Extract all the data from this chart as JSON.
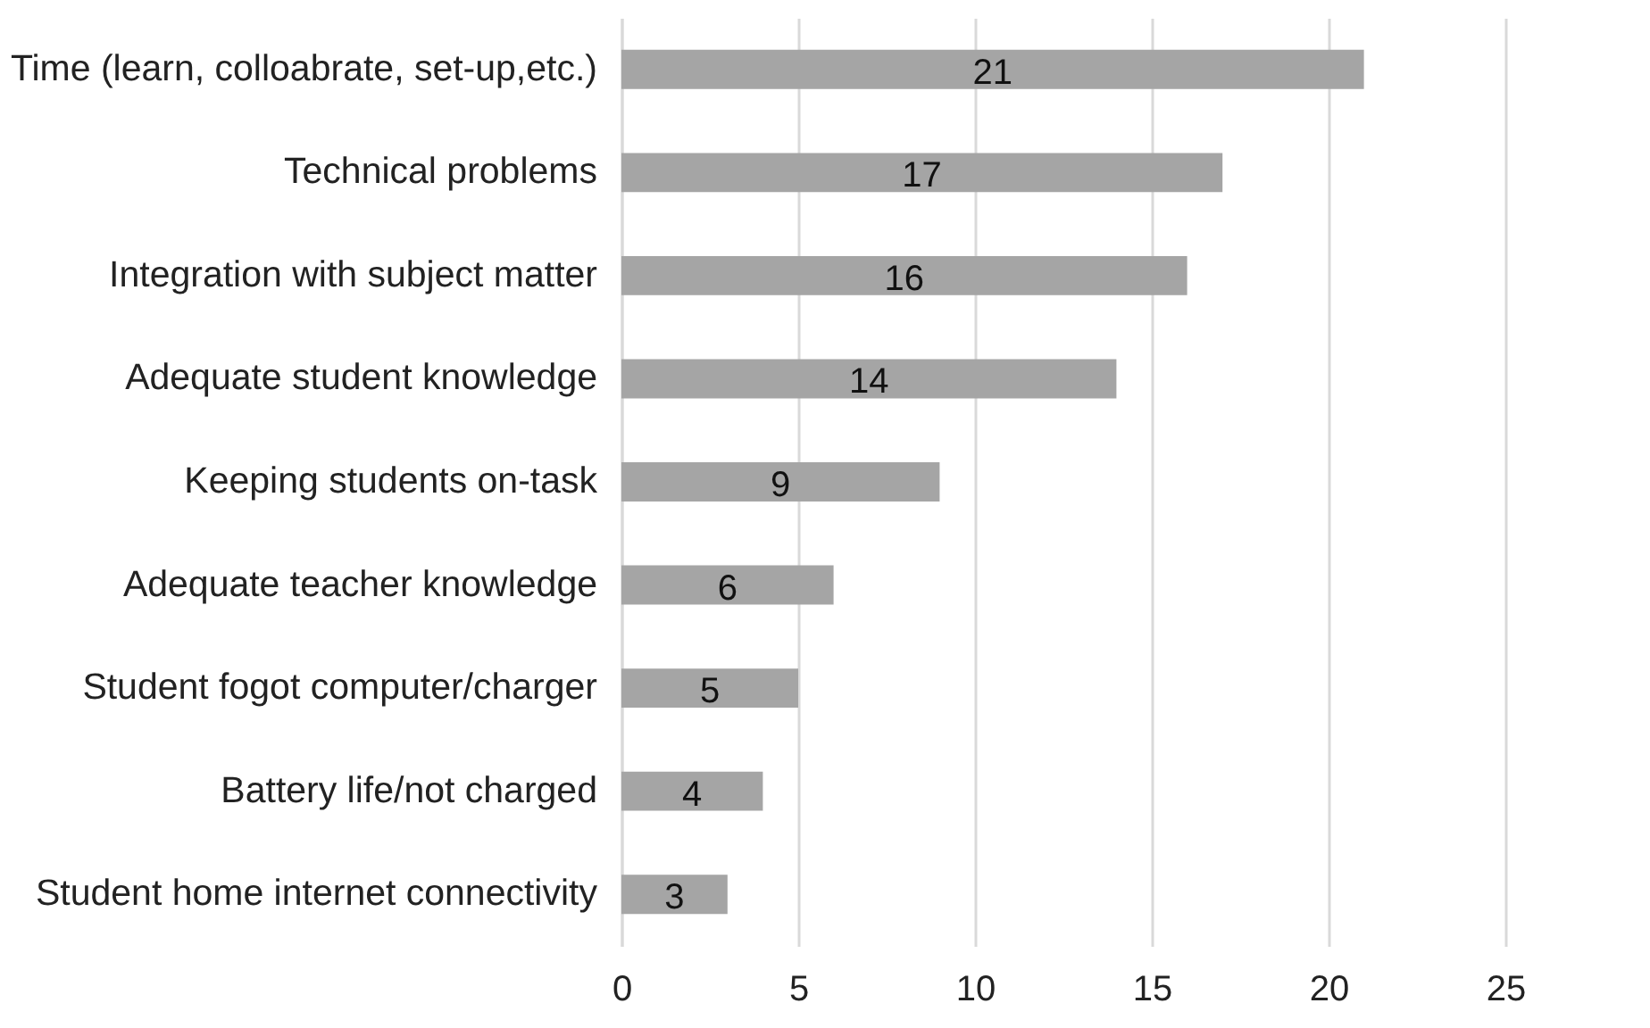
{
  "chart_data": {
    "type": "bar",
    "orientation": "horizontal",
    "categories": [
      "Time (learn, colloabrate, set-up,etc.)",
      "Technical problems",
      "Integration with subject matter",
      "Adequate student knowledge",
      "Keeping students on-task",
      "Adequate teacher knowledge",
      "Student fogot computer/charger",
      "Battery life/not charged",
      "Student home internet connectivity"
    ],
    "values": [
      21,
      17,
      16,
      14,
      9,
      6,
      5,
      4,
      3
    ],
    "color": "#a5a5a5",
    "xlim": [
      0,
      25
    ],
    "xticks": [
      0,
      5,
      10,
      15,
      20,
      25
    ],
    "grid": "x",
    "data_labels": true
  }
}
